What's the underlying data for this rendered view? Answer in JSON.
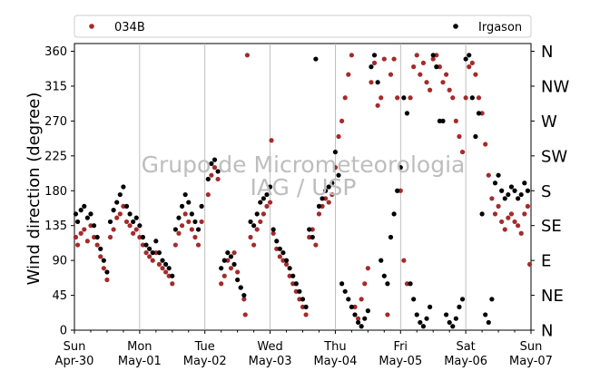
{
  "watermark": {
    "line1": "Grupo de Micrometeorologia",
    "line2": "IAG / USP"
  },
  "chart_data": {
    "type": "scatter",
    "title": "",
    "xlabel": "",
    "ylabel": "Wind direction (degree)",
    "ylim": [
      0,
      370
    ],
    "yticks": [
      0,
      45,
      90,
      135,
      180,
      225,
      270,
      315,
      360
    ],
    "compass_labels": [
      "N",
      "NE",
      "E",
      "SE",
      "S",
      "SW",
      "W",
      "NW",
      "N"
    ],
    "xlim": [
      0,
      7
    ],
    "xticks": [
      {
        "pos": 0,
        "line1": "Sun",
        "line2": "Apr-30"
      },
      {
        "pos": 1,
        "line1": "Mon",
        "line2": "May-01"
      },
      {
        "pos": 2,
        "line1": "Tue",
        "line2": "May-02"
      },
      {
        "pos": 3,
        "line1": "Wed",
        "line2": "May-03"
      },
      {
        "pos": 4,
        "line1": "Thu",
        "line2": "May-04"
      },
      {
        "pos": 5,
        "line1": "Fri",
        "line2": "May-05"
      },
      {
        "pos": 6,
        "line1": "Sat",
        "line2": "May-06"
      },
      {
        "pos": 7,
        "line1": "Sun",
        "line2": "May-07"
      }
    ],
    "grid_x": true,
    "legend_placement": "top",
    "series": [
      {
        "name": "034B",
        "color": "#a52a2a",
        "points": [
          [
            0.02,
            120
          ],
          [
            0.05,
            110
          ],
          [
            0.1,
            125
          ],
          [
            0.15,
            130
          ],
          [
            0.2,
            115
          ],
          [
            0.25,
            135
          ],
          [
            0.3,
            120
          ],
          [
            0.35,
            110
          ],
          [
            0.4,
            95
          ],
          [
            0.45,
            80
          ],
          [
            0.5,
            65
          ],
          [
            0.55,
            120
          ],
          [
            0.6,
            130
          ],
          [
            0.65,
            145
          ],
          [
            0.7,
            150
          ],
          [
            0.75,
            160
          ],
          [
            0.8,
            140
          ],
          [
            0.85,
            135
          ],
          [
            0.9,
            125
          ],
          [
            0.95,
            130
          ],
          [
            1.0,
            120
          ],
          [
            1.05,
            110
          ],
          [
            1.1,
            100
          ],
          [
            1.15,
            95
          ],
          [
            1.2,
            90
          ],
          [
            1.25,
            100
          ],
          [
            1.3,
            85
          ],
          [
            1.35,
            80
          ],
          [
            1.4,
            75
          ],
          [
            1.45,
            70
          ],
          [
            1.5,
            60
          ],
          [
            1.55,
            110
          ],
          [
            1.6,
            125
          ],
          [
            1.65,
            135
          ],
          [
            1.7,
            150
          ],
          [
            1.75,
            140
          ],
          [
            1.8,
            130
          ],
          [
            1.85,
            120
          ],
          [
            1.9,
            110
          ],
          [
            1.95,
            140
          ],
          [
            2.05,
            175
          ],
          [
            2.1,
            200
          ],
          [
            2.15,
            210
          ],
          [
            2.2,
            195
          ],
          [
            2.25,
            60
          ],
          [
            2.3,
            70
          ],
          [
            2.35,
            90
          ],
          [
            2.4,
            80
          ],
          [
            2.45,
            100
          ],
          [
            2.5,
            75
          ],
          [
            2.55,
            55
          ],
          [
            2.6,
            40
          ],
          [
            2.62,
            20
          ],
          [
            2.65,
            355
          ],
          [
            2.7,
            120
          ],
          [
            2.75,
            110
          ],
          [
            2.8,
            130
          ],
          [
            2.85,
            140
          ],
          [
            2.9,
            150
          ],
          [
            2.95,
            160
          ],
          [
            3.0,
            165
          ],
          [
            3.02,
            245
          ],
          [
            3.05,
            125
          ],
          [
            3.1,
            105
          ],
          [
            3.15,
            95
          ],
          [
            3.2,
            90
          ],
          [
            3.25,
            85
          ],
          [
            3.3,
            70
          ],
          [
            3.35,
            60
          ],
          [
            3.4,
            50
          ],
          [
            3.45,
            40
          ],
          [
            3.5,
            30
          ],
          [
            3.55,
            20
          ],
          [
            3.6,
            120
          ],
          [
            3.65,
            130
          ],
          [
            3.7,
            110
          ],
          [
            3.75,
            150
          ],
          [
            3.8,
            160
          ],
          [
            3.85,
            170
          ],
          [
            3.9,
            165
          ],
          [
            3.95,
            175
          ],
          [
            4.0,
            210
          ],
          [
            4.05,
            250
          ],
          [
            4.1,
            270
          ],
          [
            4.15,
            300
          ],
          [
            4.2,
            330
          ],
          [
            4.25,
            355
          ],
          [
            4.3,
            30
          ],
          [
            4.35,
            15
          ],
          [
            4.4,
            40
          ],
          [
            4.45,
            60
          ],
          [
            4.5,
            80
          ],
          [
            4.55,
            320
          ],
          [
            4.6,
            345
          ],
          [
            4.65,
            290
          ],
          [
            4.7,
            300
          ],
          [
            4.75,
            350
          ],
          [
            4.8,
            20
          ],
          [
            4.85,
            330
          ],
          [
            4.9,
            350
          ],
          [
            4.95,
            300
          ],
          [
            5.0,
            180
          ],
          [
            5.05,
            90
          ],
          [
            5.1,
            60
          ],
          [
            5.15,
            300
          ],
          [
            5.2,
            340
          ],
          [
            5.25,
            355
          ],
          [
            5.3,
            330
          ],
          [
            5.35,
            345
          ],
          [
            5.4,
            320
          ],
          [
            5.45,
            310
          ],
          [
            5.5,
            350
          ],
          [
            5.55,
            355
          ],
          [
            5.6,
            340
          ],
          [
            5.65,
            320
          ],
          [
            5.7,
            330
          ],
          [
            5.75,
            310
          ],
          [
            5.8,
            300
          ],
          [
            5.85,
            270
          ],
          [
            5.9,
            250
          ],
          [
            5.95,
            230
          ],
          [
            6.0,
            300
          ],
          [
            6.05,
            340
          ],
          [
            6.1,
            345
          ],
          [
            6.15,
            330
          ],
          [
            6.2,
            300
          ],
          [
            6.25,
            280
          ],
          [
            6.3,
            240
          ],
          [
            6.35,
            200
          ],
          [
            6.4,
            170
          ],
          [
            6.45,
            150
          ],
          [
            6.5,
            160
          ],
          [
            6.55,
            140
          ],
          [
            6.6,
            130
          ],
          [
            6.65,
            145
          ],
          [
            6.7,
            150
          ],
          [
            6.75,
            140
          ],
          [
            6.8,
            135
          ],
          [
            6.85,
            125
          ],
          [
            6.9,
            150
          ],
          [
            6.95,
            160
          ],
          [
            6.98,
            85
          ]
        ]
      },
      {
        "name": "Irgason",
        "color": "#000000",
        "points": [
          [
            0.02,
            150
          ],
          [
            0.05,
            140
          ],
          [
            0.1,
            155
          ],
          [
            0.15,
            160
          ],
          [
            0.2,
            145
          ],
          [
            0.25,
            150
          ],
          [
            0.3,
            135
          ],
          [
            0.35,
            120
          ],
          [
            0.4,
            105
          ],
          [
            0.45,
            90
          ],
          [
            0.5,
            75
          ],
          [
            0.55,
            140
          ],
          [
            0.6,
            155
          ],
          [
            0.65,
            165
          ],
          [
            0.7,
            175
          ],
          [
            0.75,
            185
          ],
          [
            0.8,
            160
          ],
          [
            0.85,
            150
          ],
          [
            0.9,
            140
          ],
          [
            0.95,
            145
          ],
          [
            1.0,
            135
          ],
          [
            1.05,
            120
          ],
          [
            1.1,
            110
          ],
          [
            1.15,
            105
          ],
          [
            1.2,
            100
          ],
          [
            1.25,
            115
          ],
          [
            1.3,
            100
          ],
          [
            1.35,
            90
          ],
          [
            1.4,
            85
          ],
          [
            1.45,
            80
          ],
          [
            1.5,
            70
          ],
          [
            1.55,
            130
          ],
          [
            1.6,
            145
          ],
          [
            1.65,
            160
          ],
          [
            1.7,
            175
          ],
          [
            1.75,
            165
          ],
          [
            1.8,
            150
          ],
          [
            1.85,
            140
          ],
          [
            1.9,
            130
          ],
          [
            1.95,
            160
          ],
          [
            2.05,
            195
          ],
          [
            2.1,
            215
          ],
          [
            2.15,
            220
          ],
          [
            2.2,
            205
          ],
          [
            2.25,
            80
          ],
          [
            2.3,
            90
          ],
          [
            2.35,
            100
          ],
          [
            2.4,
            95
          ],
          [
            2.45,
            85
          ],
          [
            2.5,
            65
          ],
          [
            2.55,
            55
          ],
          [
            2.6,
            45
          ],
          [
            2.7,
            140
          ],
          [
            2.75,
            135
          ],
          [
            2.8,
            150
          ],
          [
            2.85,
            165
          ],
          [
            2.9,
            170
          ],
          [
            2.95,
            175
          ],
          [
            3.0,
            185
          ],
          [
            3.05,
            130
          ],
          [
            3.1,
            115
          ],
          [
            3.15,
            105
          ],
          [
            3.2,
            100
          ],
          [
            3.25,
            90
          ],
          [
            3.3,
            80
          ],
          [
            3.35,
            70
          ],
          [
            3.4,
            60
          ],
          [
            3.45,
            50
          ],
          [
            3.5,
            40
          ],
          [
            3.55,
            30
          ],
          [
            3.6,
            130
          ],
          [
            3.65,
            120
          ],
          [
            3.7,
            350
          ],
          [
            3.75,
            160
          ],
          [
            3.8,
            170
          ],
          [
            3.85,
            180
          ],
          [
            3.9,
            185
          ],
          [
            3.95,
            190
          ],
          [
            4.0,
            230
          ],
          [
            4.05,
            200
          ],
          [
            4.1,
            60
          ],
          [
            4.15,
            50
          ],
          [
            4.2,
            40
          ],
          [
            4.25,
            30
          ],
          [
            4.3,
            20
          ],
          [
            4.35,
            10
          ],
          [
            4.4,
            5
          ],
          [
            4.45,
            15
          ],
          [
            4.5,
            25
          ],
          [
            4.55,
            340
          ],
          [
            4.6,
            355
          ],
          [
            4.65,
            320
          ],
          [
            4.7,
            90
          ],
          [
            4.75,
            70
          ],
          [
            4.8,
            60
          ],
          [
            4.85,
            120
          ],
          [
            4.9,
            150
          ],
          [
            4.95,
            180
          ],
          [
            5.0,
            210
          ],
          [
            5.05,
            300
          ],
          [
            5.1,
            280
          ],
          [
            5.15,
            60
          ],
          [
            5.2,
            40
          ],
          [
            5.25,
            20
          ],
          [
            5.3,
            10
          ],
          [
            5.35,
            5
          ],
          [
            5.4,
            15
          ],
          [
            5.45,
            30
          ],
          [
            5.5,
            355
          ],
          [
            5.55,
            340
          ],
          [
            5.6,
            270
          ],
          [
            5.65,
            270
          ],
          [
            5.7,
            20
          ],
          [
            5.75,
            10
          ],
          [
            5.8,
            5
          ],
          [
            5.85,
            15
          ],
          [
            5.9,
            30
          ],
          [
            5.95,
            40
          ],
          [
            6.0,
            350
          ],
          [
            6.05,
            355
          ],
          [
            6.1,
            300
          ],
          [
            6.15,
            250
          ],
          [
            6.2,
            280
          ],
          [
            6.25,
            150
          ],
          [
            6.3,
            20
          ],
          [
            6.35,
            10
          ],
          [
            6.4,
            40
          ],
          [
            6.45,
            190
          ],
          [
            6.5,
            200
          ],
          [
            6.55,
            180
          ],
          [
            6.6,
            170
          ],
          [
            6.65,
            175
          ],
          [
            6.7,
            185
          ],
          [
            6.75,
            180
          ],
          [
            6.8,
            170
          ],
          [
            6.85,
            175
          ],
          [
            6.9,
            190
          ],
          [
            6.95,
            180
          ]
        ]
      }
    ]
  }
}
